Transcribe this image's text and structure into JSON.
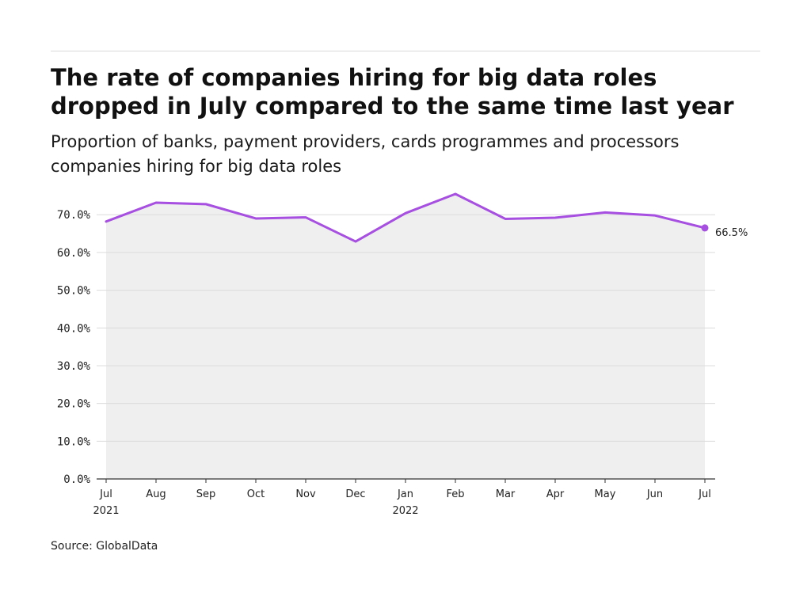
{
  "header": {
    "title": "The rate of companies hiring for big data roles dropped in July compared to the same time last year",
    "subtitle": "Proportion of banks, payment providers, cards programmes and processors companies hiring for big data roles"
  },
  "footer": {
    "source": "Source: GlobalData"
  },
  "colors": {
    "line": "#a64fe0",
    "area": "#efefef",
    "grid": "#dcdcdc",
    "axis": "#333333"
  },
  "chart_data": {
    "type": "area",
    "title": "The rate of companies hiring for big data roles dropped in July compared to the same time last year",
    "subtitle": "Proportion of banks, payment providers, cards programmes and processors companies hiring for big data roles",
    "xlabel": "",
    "ylabel": "",
    "categories": [
      "Jul 2021",
      "Aug 2021",
      "Sep 2021",
      "Oct 2021",
      "Nov 2021",
      "Dec 2021",
      "Jan 2022",
      "Feb 2022",
      "Mar 2022",
      "Apr 2022",
      "May 2022",
      "Jun 2022",
      "Jul 2022"
    ],
    "x_tick_labels": [
      [
        "Jul",
        "2021"
      ],
      [
        "Aug"
      ],
      [
        "Sep"
      ],
      [
        "Oct"
      ],
      [
        "Nov"
      ],
      [
        "Dec"
      ],
      [
        "Jan",
        "2022"
      ],
      [
        "Feb"
      ],
      [
        "Mar"
      ],
      [
        "Apr"
      ],
      [
        "May"
      ],
      [
        "Jun"
      ],
      [
        "Jul"
      ]
    ],
    "series": [
      {
        "values": [
          68.2,
          73.2,
          72.8,
          69.0,
          69.3,
          62.9,
          70.4,
          75.5,
          68.9,
          69.2,
          70.6,
          69.8,
          66.5
        ]
      }
    ],
    "y_ticks": [
      "0.0%",
      "10.0%",
      "20.0%",
      "30.0%",
      "40.0%",
      "50.0%",
      "60.0%",
      "70.0%"
    ],
    "ylim": [
      0,
      75.5
    ],
    "end_label": "66.5%",
    "grid": true,
    "legend": "none"
  }
}
